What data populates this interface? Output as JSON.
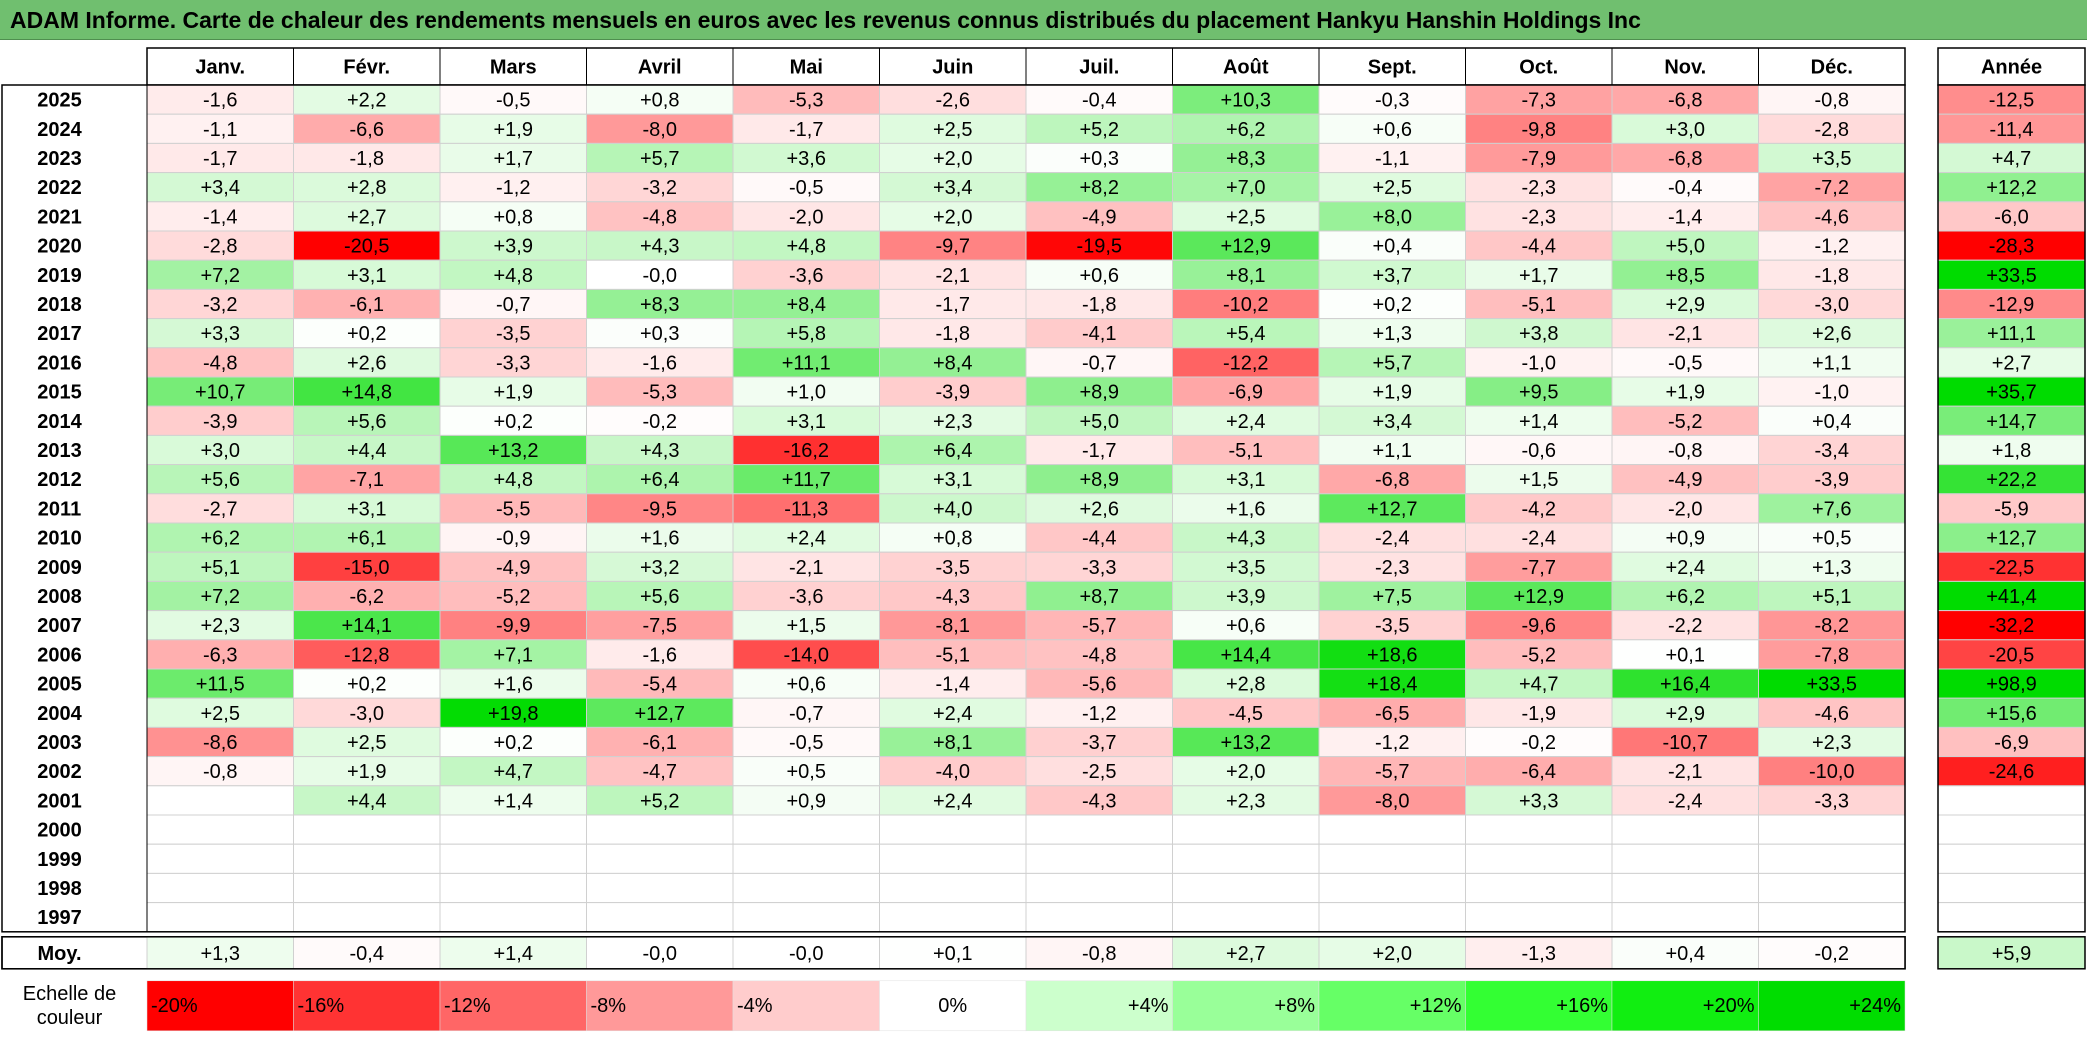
{
  "title": "ADAM Informe. Carte de chaleur des rendements mensuels en euros avec les revenus connus distribués du placement Hankyu Hanshin Holdings Inc",
  "chart_data": {
    "type": "heatmap",
    "title": "ADAM Informe. Carte de chaleur des rendements mensuels en euros avec les revenus connus distribués du placement Hankyu Hanshin Holdings Inc",
    "months": [
      "Janv.",
      "Févr.",
      "Mars",
      "Avril",
      "Mai",
      "Juin",
      "Juil.",
      "Août",
      "Sept.",
      "Oct.",
      "Nov.",
      "Déc."
    ],
    "year_header": "Année",
    "avg_label": "Moy.",
    "rows": [
      {
        "year": "2025",
        "values": [
          "-1,6",
          "+2,2",
          "-0,5",
          "+0,8",
          "-5,3",
          "-2,6",
          "-0,4",
          "+10,3",
          "-0,3",
          "-7,3",
          "-6,8",
          "-0,8"
        ],
        "annual": "-12,5"
      },
      {
        "year": "2024",
        "values": [
          "-1,1",
          "-6,6",
          "+1,9",
          "-8,0",
          "-1,7",
          "+2,5",
          "+5,2",
          "+6,2",
          "+0,6",
          "-9,8",
          "+3,0",
          "-2,8"
        ],
        "annual": "-11,4"
      },
      {
        "year": "2023",
        "values": [
          "-1,7",
          "-1,8",
          "+1,7",
          "+5,7",
          "+3,6",
          "+2,0",
          "+0,3",
          "+8,3",
          "-1,1",
          "-7,9",
          "-6,8",
          "+3,5"
        ],
        "annual": "+4,7"
      },
      {
        "year": "2022",
        "values": [
          "+3,4",
          "+2,8",
          "-1,2",
          "-3,2",
          "-0,5",
          "+3,4",
          "+8,2",
          "+7,0",
          "+2,5",
          "-2,3",
          "-0,4",
          "-7,2"
        ],
        "annual": "+12,2"
      },
      {
        "year": "2021",
        "values": [
          "-1,4",
          "+2,7",
          "+0,8",
          "-4,8",
          "-2,0",
          "+2,0",
          "-4,9",
          "+2,5",
          "+8,0",
          "-2,3",
          "-1,4",
          "-4,6"
        ],
        "annual": "-6,0"
      },
      {
        "year": "2020",
        "values": [
          "-2,8",
          "-20,5",
          "+3,9",
          "+4,3",
          "+4,8",
          "-9,7",
          "-19,5",
          "+12,9",
          "+0,4",
          "-4,4",
          "+5,0",
          "-1,2"
        ],
        "annual": "-28,3"
      },
      {
        "year": "2019",
        "values": [
          "+7,2",
          "+3,1",
          "+4,8",
          "-0,0",
          "-3,6",
          "-2,1",
          "+0,6",
          "+8,1",
          "+3,7",
          "+1,7",
          "+8,5",
          "-1,8"
        ],
        "annual": "+33,5"
      },
      {
        "year": "2018",
        "values": [
          "-3,2",
          "-6,1",
          "-0,7",
          "+8,3",
          "+8,4",
          "-1,7",
          "-1,8",
          "-10,2",
          "+0,2",
          "-5,1",
          "+2,9",
          "-3,0"
        ],
        "annual": "-12,9"
      },
      {
        "year": "2017",
        "values": [
          "+3,3",
          "+0,2",
          "-3,5",
          "+0,3",
          "+5,8",
          "-1,8",
          "-4,1",
          "+5,4",
          "+1,3",
          "+3,8",
          "-2,1",
          "+2,6"
        ],
        "annual": "+11,1"
      },
      {
        "year": "2016",
        "values": [
          "-4,8",
          "+2,6",
          "-3,3",
          "-1,6",
          "+11,1",
          "+8,4",
          "-0,7",
          "-12,2",
          "+5,7",
          "-1,0",
          "-0,5",
          "+1,1"
        ],
        "annual": "+2,7"
      },
      {
        "year": "2015",
        "values": [
          "+10,7",
          "+14,8",
          "+1,9",
          "-5,3",
          "+1,0",
          "-3,9",
          "+8,9",
          "-6,9",
          "+1,9",
          "+9,5",
          "+1,9",
          "-1,0"
        ],
        "annual": "+35,7"
      },
      {
        "year": "2014",
        "values": [
          "-3,9",
          "+5,6",
          "+0,2",
          "-0,2",
          "+3,1",
          "+2,3",
          "+5,0",
          "+2,4",
          "+3,4",
          "+1,4",
          "-5,2",
          "+0,4"
        ],
        "annual": "+14,7"
      },
      {
        "year": "2013",
        "values": [
          "+3,0",
          "+4,4",
          "+13,2",
          "+4,3",
          "-16,2",
          "+6,4",
          "-1,7",
          "-5,1",
          "+1,1",
          "-0,6",
          "-0,8",
          "-3,4"
        ],
        "annual": "+1,8"
      },
      {
        "year": "2012",
        "values": [
          "+5,6",
          "-7,1",
          "+4,8",
          "+6,4",
          "+11,7",
          "+3,1",
          "+8,9",
          "+3,1",
          "-6,8",
          "+1,5",
          "-4,9",
          "-3,9"
        ],
        "annual": "+22,2"
      },
      {
        "year": "2011",
        "values": [
          "-2,7",
          "+3,1",
          "-5,5",
          "-9,5",
          "-11,3",
          "+4,0",
          "+2,6",
          "+1,6",
          "+12,7",
          "-4,2",
          "-2,0",
          "+7,6"
        ],
        "annual": "-5,9"
      },
      {
        "year": "2010",
        "values": [
          "+6,2",
          "+6,1",
          "-0,9",
          "+1,6",
          "+2,4",
          "+0,8",
          "-4,4",
          "+4,3",
          "-2,4",
          "-2,4",
          "+0,9",
          "+0,5"
        ],
        "annual": "+12,7"
      },
      {
        "year": "2009",
        "values": [
          "+5,1",
          "-15,0",
          "-4,9",
          "+3,2",
          "-2,1",
          "-3,5",
          "-3,3",
          "+3,5",
          "-2,3",
          "-7,7",
          "+2,4",
          "+1,3"
        ],
        "annual": "-22,5"
      },
      {
        "year": "2008",
        "values": [
          "+7,2",
          "-6,2",
          "-5,2",
          "+5,6",
          "-3,6",
          "-4,3",
          "+8,7",
          "+3,9",
          "+7,5",
          "+12,9",
          "+6,2",
          "+5,1"
        ],
        "annual": "+41,4"
      },
      {
        "year": "2007",
        "values": [
          "+2,3",
          "+14,1",
          "-9,9",
          "-7,5",
          "+1,5",
          "-8,1",
          "-5,7",
          "+0,6",
          "-3,5",
          "-9,6",
          "-2,2",
          "-8,2"
        ],
        "annual": "-32,2"
      },
      {
        "year": "2006",
        "values": [
          "-6,3",
          "-12,8",
          "+7,1",
          "-1,6",
          "-14,0",
          "-5,1",
          "-4,8",
          "+14,4",
          "+18,6",
          "-5,2",
          "+0,1",
          "-7,8"
        ],
        "annual": "-20,5"
      },
      {
        "year": "2005",
        "values": [
          "+11,5",
          "+0,2",
          "+1,6",
          "-5,4",
          "+0,6",
          "-1,4",
          "-5,6",
          "+2,8",
          "+18,4",
          "+4,7",
          "+16,4",
          "+33,5"
        ],
        "annual": "+98,9"
      },
      {
        "year": "2004",
        "values": [
          "+2,5",
          "-3,0",
          "+19,8",
          "+12,7",
          "-0,7",
          "+2,4",
          "-1,2",
          "-4,5",
          "-6,5",
          "-1,9",
          "+2,9",
          "-4,6"
        ],
        "annual": "+15,6"
      },
      {
        "year": "2003",
        "values": [
          "-8,6",
          "+2,5",
          "+0,2",
          "-6,1",
          "-0,5",
          "+8,1",
          "-3,7",
          "+13,2",
          "-1,2",
          "-0,2",
          "-10,7",
          "+2,3"
        ],
        "annual": "-6,9"
      },
      {
        "year": "2002",
        "values": [
          "-0,8",
          "+1,9",
          "+4,7",
          "-4,7",
          "+0,5",
          "-4,0",
          "-2,5",
          "+2,0",
          "-5,7",
          "-6,4",
          "-2,1",
          "-10,0"
        ],
        "annual": "-24,6"
      },
      {
        "year": "2001",
        "values": [
          "",
          "+4,4",
          "+1,4",
          "+5,2",
          "+0,9",
          "+2,4",
          "-4,3",
          "+2,3",
          "-8,0",
          "+3,3",
          "-2,4",
          "-3,3"
        ],
        "annual": ""
      },
      {
        "year": "2000",
        "values": [
          "",
          "",
          "",
          "",
          "",
          "",
          "",
          "",
          "",
          "",
          "",
          ""
        ],
        "annual": ""
      },
      {
        "year": "1999",
        "values": [
          "",
          "",
          "",
          "",
          "",
          "",
          "",
          "",
          "",
          "",
          "",
          ""
        ],
        "annual": ""
      },
      {
        "year": "1998",
        "values": [
          "",
          "",
          "",
          "",
          "",
          "",
          "",
          "",
          "",
          "",
          "",
          ""
        ],
        "annual": ""
      },
      {
        "year": "1997",
        "values": [
          "",
          "",
          "",
          "",
          "",
          "",
          "",
          "",
          "",
          "",
          "",
          ""
        ],
        "annual": ""
      }
    ],
    "averages": [
      "+1,3",
      "-0,4",
      "+1,4",
      "-0,0",
      "-0,0",
      "+0,1",
      "-0,8",
      "+2,7",
      "+2,0",
      "-1,3",
      "+0,4",
      "-0,2"
    ],
    "annual_average": "+5,9",
    "scale": {
      "label_line1": "Echelle de",
      "label_line2": "couleur",
      "steps": [
        {
          "label": "-20%",
          "value": -20,
          "color": "#ff0000"
        },
        {
          "label": "-16%",
          "value": -16,
          "color": "#ff3333"
        },
        {
          "label": "-12%",
          "value": -12,
          "color": "#ff6666"
        },
        {
          "label": "-8%",
          "value": -8,
          "color": "#ff9999"
        },
        {
          "label": "-4%",
          "value": -4,
          "color": "#ffcccc"
        },
        {
          "label": "0%",
          "value": 0,
          "color": "#ffffff"
        },
        {
          "label": "+4%",
          "value": 4,
          "color": "#ccffcc"
        },
        {
          "label": "+8%",
          "value": 8,
          "color": "#99ff99"
        },
        {
          "label": "+12%",
          "value": 12,
          "color": "#66ff66"
        },
        {
          "label": "+16%",
          "value": 16,
          "color": "#33ff33"
        },
        {
          "label": "+20%",
          "value": 20,
          "color": "#11ee11"
        },
        {
          "label": "+24%",
          "value": 24,
          "color": "#00dd00"
        }
      ]
    },
    "colors": {
      "title_bg": "#70bf6f",
      "negative_max": "#ff0000",
      "positive_max": "#00dd00",
      "neutral": "#ffffff"
    }
  }
}
